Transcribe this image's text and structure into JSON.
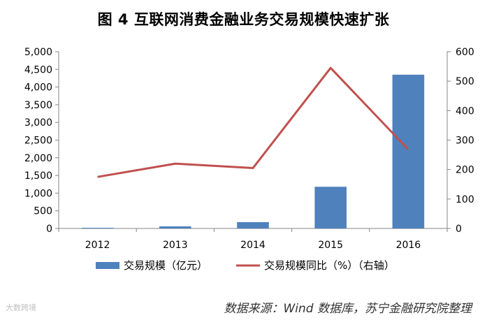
{
  "chart_data": {
    "type": "bar+line",
    "title": "图 4  互联网消费金融业务交易规模快速扩张",
    "categories": [
      "2012",
      "2013",
      "2014",
      "2015",
      "2016"
    ],
    "series": [
      {
        "name": "交易规模（亿元）",
        "type": "bar",
        "axis": "left",
        "color": "#4f81bd",
        "values": [
          20,
          60,
          180,
          1180,
          4350
        ]
      },
      {
        "name": "交易规模同比（%）（右轴）",
        "type": "line",
        "axis": "right",
        "color": "#c0504d",
        "values": [
          175,
          220,
          205,
          545,
          268
        ]
      }
    ],
    "y_left": {
      "min": 0,
      "max": 5000,
      "step": 500,
      "tick_labels": [
        "0",
        "500",
        "1,000",
        "1,500",
        "2,000",
        "2,500",
        "3,000",
        "3,500",
        "4,000",
        "4,500",
        "5,000"
      ]
    },
    "y_right": {
      "min": 0,
      "max": 600,
      "step": 100,
      "tick_labels": [
        "0",
        "100",
        "200",
        "300",
        "400",
        "500",
        "600"
      ]
    },
    "grid": false,
    "legend_position": "bottom"
  },
  "source_note": "数据来源：Wind 数据库，苏宁金融研究院整理",
  "watermark": "大数跨境"
}
